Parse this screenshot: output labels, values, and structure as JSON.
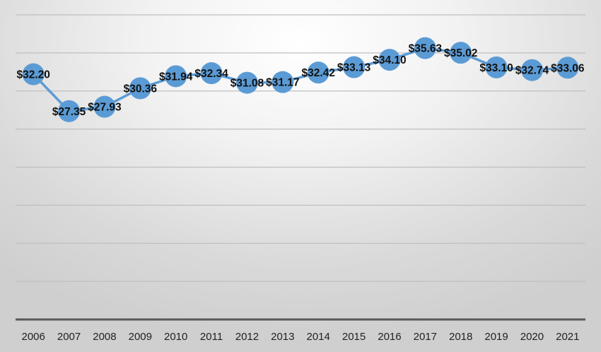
{
  "chart_data": {
    "type": "line",
    "title": "",
    "xlabel": "",
    "ylabel": "",
    "categories": [
      "2006",
      "2007",
      "2008",
      "2009",
      "2010",
      "2011",
      "2012",
      "2013",
      "2014",
      "2015",
      "2016",
      "2017",
      "2018",
      "2019",
      "2020",
      "2021"
    ],
    "series": [
      {
        "values": [
          32.2,
          27.35,
          27.93,
          30.36,
          31.94,
          32.34,
          31.08,
          31.17,
          32.42,
          33.13,
          34.1,
          35.63,
          35.02,
          33.1,
          32.74,
          33.06
        ],
        "labels": [
          "$32.20",
          "$27.35",
          "$27.93",
          "$30.36",
          "$31.94",
          "$32.34",
          "$31.08",
          "$31.17",
          "$32.42",
          "$33.13",
          "$34.10",
          "$35.63",
          "$35.02",
          "$33.10",
          "$32.74",
          "$33.06"
        ],
        "color": "#5b9bd5"
      }
    ],
    "ylim": [
      0,
      40
    ],
    "grid": true,
    "y_ticks_shown": false,
    "legend": "none"
  }
}
